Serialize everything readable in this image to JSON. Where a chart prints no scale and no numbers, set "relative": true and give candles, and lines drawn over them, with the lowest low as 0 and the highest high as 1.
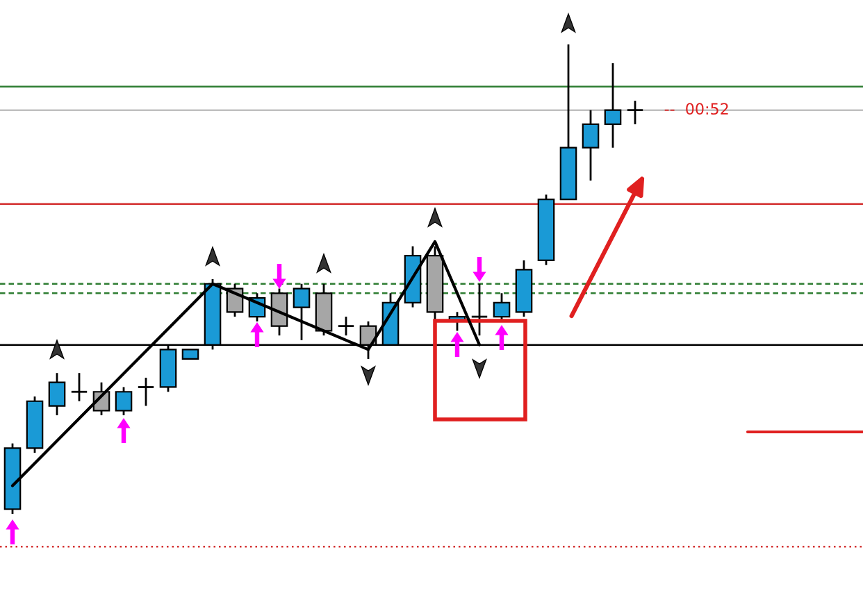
{
  "chart_data": {
    "type": "candlestick",
    "relative": true,
    "categories": [
      null,
      null,
      null,
      null,
      null,
      null,
      null,
      null,
      null,
      null,
      null,
      null,
      null,
      null,
      null,
      null,
      null,
      null,
      null,
      null,
      null,
      null,
      null,
      null,
      null,
      null,
      null,
      null,
      null
    ],
    "ohlc": [
      [
        0.01,
        0.15,
        0,
        0.14
      ],
      [
        0.14,
        0.25,
        0.13,
        0.24
      ],
      [
        0.23,
        0.3,
        0.21,
        0.28
      ],
      [
        0.26,
        0.3,
        0.24,
        0.26
      ],
      [
        0.26,
        0.28,
        0.21,
        0.22
      ],
      [
        0.22,
        0.27,
        0.21,
        0.26
      ],
      [
        0.27,
        0.29,
        0.23,
        0.27
      ],
      [
        0.27,
        0.36,
        0.26,
        0.35
      ],
      [
        0.33,
        0.35,
        0.33,
        0.35
      ],
      [
        0.36,
        0.5,
        0.35,
        0.49
      ],
      [
        0.48,
        0.49,
        0.42,
        0.43
      ],
      [
        0.42,
        0.47,
        0.41,
        0.46
      ],
      [
        0.47,
        0.48,
        0.38,
        0.4
      ],
      [
        0.44,
        0.49,
        0.37,
        0.48
      ],
      [
        0.47,
        0.49,
        0.38,
        0.39
      ],
      [
        0.4,
        0.42,
        0.38,
        0.4
      ],
      [
        0.4,
        0.41,
        0.33,
        0.36
      ],
      [
        0.36,
        0.47,
        0.36,
        0.45
      ],
      [
        0.45,
        0.57,
        0.44,
        0.55
      ],
      [
        0.55,
        0.57,
        0.41,
        0.43
      ],
      [
        0.41,
        0.43,
        0.39,
        0.42
      ],
      [
        0.42,
        0.49,
        0.38,
        0.42
      ],
      [
        0.42,
        0.47,
        0.41,
        0.45
      ],
      [
        0.43,
        0.54,
        0.42,
        0.52
      ],
      [
        0.54,
        0.68,
        0.53,
        0.67
      ],
      [
        0.67,
        1.0,
        0.67,
        0.78
      ],
      [
        0.78,
        0.86,
        0.71,
        0.83
      ],
      [
        0.83,
        0.96,
        0.78,
        0.86
      ],
      [
        0.86,
        0.88,
        0.83,
        0.86
      ]
    ],
    "series": [
      {
        "type": "line",
        "color": "#000000",
        "values": [
          0.06,
          null,
          null,
          null,
          null,
          null,
          null,
          null,
          null,
          0.49,
          null,
          null,
          null,
          null,
          null,
          null,
          0.35,
          null,
          null,
          0.58,
          null,
          0.36,
          null,
          null,
          null,
          null,
          null,
          null,
          null
        ]
      }
    ],
    "ref_lines": [
      {
        "axis": "y",
        "value": 0.91,
        "color": "#2e7d32",
        "line_style": "solid"
      },
      {
        "axis": "y",
        "value": 0.86,
        "color": "#c0c0c0",
        "line_style": "solid"
      },
      {
        "axis": "y",
        "value": 0.66,
        "color": "#d32f2f",
        "line_style": "solid"
      },
      {
        "axis": "y",
        "value": 0.49,
        "color": "#2e7d32",
        "line_style": "dashed"
      },
      {
        "axis": "y",
        "value": 0.47,
        "color": "#2e7d32",
        "line_style": "dashed"
      },
      {
        "axis": "y",
        "value": 0.36,
        "color": "#000000",
        "line_style": "solid"
      },
      {
        "axis": "y",
        "value": -0.07,
        "color": "#d32f2f",
        "line_style": "dotted"
      }
    ],
    "annotations": [
      "--  00:52"
    ],
    "grid": false
  }
}
